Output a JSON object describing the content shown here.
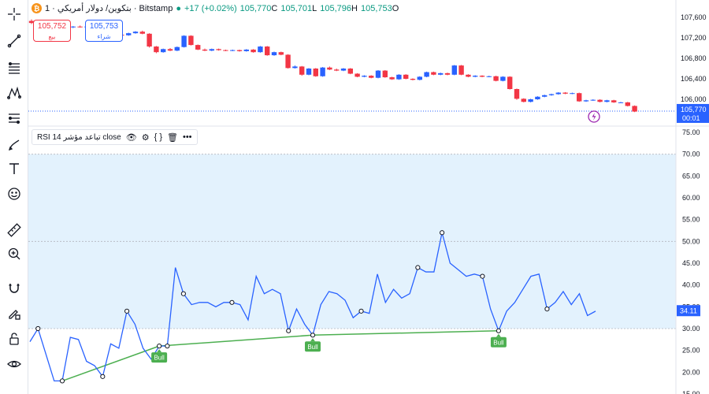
{
  "header": {
    "symbol_icon": "btc-icon",
    "title": "بتكوين/ دولار أمريكي · 1 · Bitstamp",
    "change": "+17 (+0.02%)",
    "ohlc": [
      {
        "value": "105,770",
        "label": "C"
      },
      {
        "value": "105,701",
        "label": "L"
      },
      {
        "value": "105,796",
        "label": "H"
      },
      {
        "value": "105,753",
        "label": "O"
      }
    ]
  },
  "trade": {
    "sell_price": "105,752",
    "sell_label": "بيع",
    "buy_price": "105,753",
    "buy_label": "شراء"
  },
  "price_axis": {
    "ticks": [
      "107,600",
      "107,200",
      "106,800",
      "106,400",
      "106,000"
    ],
    "current_price": "105,770",
    "countdown": "00:01"
  },
  "rsi": {
    "legend": "RSI تباعد مؤشر 14 close",
    "axis_ticks": [
      "75.00",
      "70.00",
      "65.00",
      "60.00",
      "55.00",
      "50.00",
      "45.00",
      "40.00",
      "35.00",
      "30.00",
      "25.00",
      "20.00",
      "15.00"
    ],
    "current_value": "34.11",
    "bull_label": "Bull",
    "series": [
      27,
      30,
      24,
      18,
      18,
      28,
      27.5,
      22.5,
      21.5,
      19,
      26.5,
      25.5,
      34,
      31,
      25.5,
      23,
      26,
      26,
      44,
      38,
      35.5,
      36,
      36,
      35,
      36,
      36,
      35.5,
      32,
      42,
      38,
      39,
      38,
      29.5,
      34.5,
      31,
      28.5,
      35.5,
      38.5,
      38,
      36.5,
      32.5,
      34,
      33.5,
      42.5,
      36,
      39,
      37,
      38,
      44,
      43,
      43,
      52,
      45,
      43.5,
      42,
      42.5,
      42,
      34.5,
      29.5,
      34,
      36,
      39,
      42,
      42.5,
      34.5,
      36,
      38.5,
      35.5,
      38,
      33,
      34
    ],
    "divergences": [
      {
        "type": "Bull",
        "from": 4,
        "to": 16
      },
      {
        "type": "Bull",
        "from": 16,
        "to": 35
      },
      {
        "type": "Bull",
        "from": 35,
        "to": 58
      }
    ],
    "pivots": [
      1,
      4,
      9,
      12,
      16,
      17,
      19,
      25,
      32,
      35,
      41,
      48,
      51,
      56,
      58,
      64
    ]
  },
  "candles": [
    {
      "o": 107530,
      "c": 107490,
      "h": 107560,
      "l": 107470
    },
    {
      "o": 107490,
      "c": 107460,
      "h": 107520,
      "l": 107440
    },
    {
      "o": 107460,
      "c": 107470,
      "h": 107490,
      "l": 107440
    },
    {
      "o": 107470,
      "c": 107480,
      "h": 107500,
      "l": 107450
    },
    {
      "o": 107480,
      "c": 107420,
      "h": 107500,
      "l": 107400
    },
    {
      "o": 107420,
      "c": 107410,
      "h": 107440,
      "l": 107390
    },
    {
      "o": 107410,
      "c": 107420,
      "h": 107430,
      "l": 107390
    },
    {
      "o": 107420,
      "c": 107410,
      "h": 107440,
      "l": 107400
    },
    {
      "o": 107410,
      "c": 107420,
      "h": 107430,
      "l": 107400
    },
    {
      "o": 107420,
      "c": 107400,
      "h": 107440,
      "l": 107390
    },
    {
      "o": 107400,
      "c": 107410,
      "h": 107420,
      "l": 107390
    },
    {
      "o": 107410,
      "c": 107420,
      "h": 107430,
      "l": 107400
    },
    {
      "o": 107420,
      "c": 107260,
      "h": 107440,
      "l": 107240
    },
    {
      "o": 107260,
      "c": 107250,
      "h": 107270,
      "l": 107240
    },
    {
      "o": 107250,
      "c": 107290,
      "h": 107300,
      "l": 107240
    },
    {
      "o": 107290,
      "c": 107320,
      "h": 107330,
      "l": 107280
    },
    {
      "o": 107320,
      "c": 107280,
      "h": 107340,
      "l": 107270
    },
    {
      "o": 107280,
      "c": 107030,
      "h": 107290,
      "l": 107010
    },
    {
      "o": 107030,
      "c": 106920,
      "h": 107040,
      "l": 106900
    },
    {
      "o": 106920,
      "c": 106980,
      "h": 106990,
      "l": 106910
    },
    {
      "o": 106980,
      "c": 106950,
      "h": 107000,
      "l": 106940
    },
    {
      "o": 106950,
      "c": 107020,
      "h": 107030,
      "l": 106940
    },
    {
      "o": 107020,
      "c": 107240,
      "h": 107250,
      "l": 107010
    },
    {
      "o": 107240,
      "c": 107060,
      "h": 107250,
      "l": 107050
    },
    {
      "o": 107060,
      "c": 106970,
      "h": 107070,
      "l": 106960
    },
    {
      "o": 106970,
      "c": 106950,
      "h": 106990,
      "l": 106940
    },
    {
      "o": 106950,
      "c": 106980,
      "h": 106990,
      "l": 106940
    },
    {
      "o": 106980,
      "c": 106960,
      "h": 106990,
      "l": 106950
    },
    {
      "o": 106960,
      "c": 106950,
      "h": 106970,
      "l": 106940
    },
    {
      "o": 106950,
      "c": 106960,
      "h": 106970,
      "l": 106940
    },
    {
      "o": 106960,
      "c": 106940,
      "h": 106970,
      "l": 106930
    },
    {
      "o": 106940,
      "c": 106970,
      "h": 106980,
      "l": 106930
    },
    {
      "o": 106970,
      "c": 106920,
      "h": 106980,
      "l": 106910
    },
    {
      "o": 106920,
      "c": 107030,
      "h": 107040,
      "l": 106910
    },
    {
      "o": 107030,
      "c": 106860,
      "h": 107040,
      "l": 106850
    },
    {
      "o": 106860,
      "c": 106920,
      "h": 106930,
      "l": 106850
    },
    {
      "o": 106920,
      "c": 106870,
      "h": 106930,
      "l": 106860
    },
    {
      "o": 106870,
      "c": 106610,
      "h": 106880,
      "l": 106600
    },
    {
      "o": 106610,
      "c": 106640,
      "h": 106660,
      "l": 106600
    },
    {
      "o": 106640,
      "c": 106480,
      "h": 106650,
      "l": 106460
    },
    {
      "o": 106480,
      "c": 106600,
      "h": 106610,
      "l": 106470
    },
    {
      "o": 106600,
      "c": 106450,
      "h": 106610,
      "l": 106440
    },
    {
      "o": 106450,
      "c": 106620,
      "h": 106630,
      "l": 106440
    },
    {
      "o": 106620,
      "c": 106580,
      "h": 106640,
      "l": 106570
    },
    {
      "o": 106580,
      "c": 106560,
      "h": 106600,
      "l": 106550
    },
    {
      "o": 106560,
      "c": 106600,
      "h": 106610,
      "l": 106550
    },
    {
      "o": 106600,
      "c": 106500,
      "h": 106610,
      "l": 106490
    },
    {
      "o": 106500,
      "c": 106440,
      "h": 106510,
      "l": 106430
    },
    {
      "o": 106440,
      "c": 106460,
      "h": 106470,
      "l": 106430
    },
    {
      "o": 106460,
      "c": 106420,
      "h": 106470,
      "l": 106410
    },
    {
      "o": 106420,
      "c": 106560,
      "h": 106570,
      "l": 106410
    },
    {
      "o": 106560,
      "c": 106430,
      "h": 106570,
      "l": 106420
    },
    {
      "o": 106430,
      "c": 106390,
      "h": 106440,
      "l": 106380
    },
    {
      "o": 106390,
      "c": 106480,
      "h": 106490,
      "l": 106380
    },
    {
      "o": 106480,
      "c": 106400,
      "h": 106490,
      "l": 106390
    },
    {
      "o": 106400,
      "c": 106380,
      "h": 106410,
      "l": 106370
    },
    {
      "o": 106380,
      "c": 106440,
      "h": 106450,
      "l": 106370
    },
    {
      "o": 106440,
      "c": 106530,
      "h": 106540,
      "l": 106430
    },
    {
      "o": 106530,
      "c": 106480,
      "h": 106540,
      "l": 106470
    },
    {
      "o": 106480,
      "c": 106510,
      "h": 106520,
      "l": 106470
    },
    {
      "o": 106510,
      "c": 106480,
      "h": 106520,
      "l": 106470
    },
    {
      "o": 106480,
      "c": 106660,
      "h": 106670,
      "l": 106470
    },
    {
      "o": 106660,
      "c": 106480,
      "h": 106670,
      "l": 106470
    },
    {
      "o": 106480,
      "c": 106440,
      "h": 106490,
      "l": 106430
    },
    {
      "o": 106440,
      "c": 106460,
      "h": 106470,
      "l": 106430
    },
    {
      "o": 106460,
      "c": 106440,
      "h": 106470,
      "l": 106430
    },
    {
      "o": 106440,
      "c": 106450,
      "h": 106460,
      "l": 106430
    },
    {
      "o": 106450,
      "c": 106360,
      "h": 106460,
      "l": 106350
    },
    {
      "o": 106360,
      "c": 106440,
      "h": 106450,
      "l": 106350
    },
    {
      "o": 106440,
      "c": 106200,
      "h": 106450,
      "l": 106190
    },
    {
      "o": 106200,
      "c": 106010,
      "h": 106210,
      "l": 105990
    },
    {
      "o": 106010,
      "c": 105950,
      "h": 106020,
      "l": 105940
    },
    {
      "o": 105950,
      "c": 106000,
      "h": 106010,
      "l": 105940
    },
    {
      "o": 106000,
      "c": 106050,
      "h": 106060,
      "l": 105990
    },
    {
      "o": 106050,
      "c": 106080,
      "h": 106090,
      "l": 106040
    },
    {
      "o": 106080,
      "c": 106100,
      "h": 106110,
      "l": 106070
    },
    {
      "o": 106100,
      "c": 106130,
      "h": 106140,
      "l": 106090
    },
    {
      "o": 106130,
      "c": 106110,
      "h": 106140,
      "l": 106100
    },
    {
      "o": 106110,
      "c": 106120,
      "h": 106130,
      "l": 106100
    },
    {
      "o": 106120,
      "c": 105960,
      "h": 106130,
      "l": 105950
    },
    {
      "o": 105960,
      "c": 105980,
      "h": 105990,
      "l": 105950
    },
    {
      "o": 105980,
      "c": 105990,
      "h": 106000,
      "l": 105970
    },
    {
      "o": 105990,
      "c": 105950,
      "h": 106000,
      "l": 105940
    },
    {
      "o": 105950,
      "c": 105980,
      "h": 105990,
      "l": 105940
    },
    {
      "o": 105980,
      "c": 105940,
      "h": 105990,
      "l": 105930
    },
    {
      "o": 105940,
      "c": 105940,
      "h": 105950,
      "l": 105930
    },
    {
      "o": 105940,
      "c": 105870,
      "h": 105950,
      "l": 105860
    },
    {
      "o": 105870,
      "c": 105760,
      "h": 105880,
      "l": 105750
    }
  ],
  "toolbar": [
    {
      "name": "crosshair-icon"
    },
    {
      "name": "trend-line-icon"
    },
    {
      "name": "fib-levels-icon"
    },
    {
      "name": "pattern-icon"
    },
    {
      "name": "forecast-icon"
    },
    {
      "name": "brush-icon"
    },
    {
      "name": "text-icon"
    },
    {
      "name": "emoji-icon"
    },
    {
      "name": "ruler-icon"
    },
    {
      "name": "zoom-in-icon"
    },
    {
      "name": "magnet-icon"
    },
    {
      "name": "lock-drawing-icon"
    },
    {
      "name": "lock-icon"
    },
    {
      "name": "eye-icon"
    }
  ],
  "colors": {
    "up": "#2962ff",
    "down": "#f23645",
    "rsi_line": "#2962ff",
    "divergence": "#4caf50",
    "band_fill": "#e3f2fd",
    "alert": "#9c27b0"
  }
}
